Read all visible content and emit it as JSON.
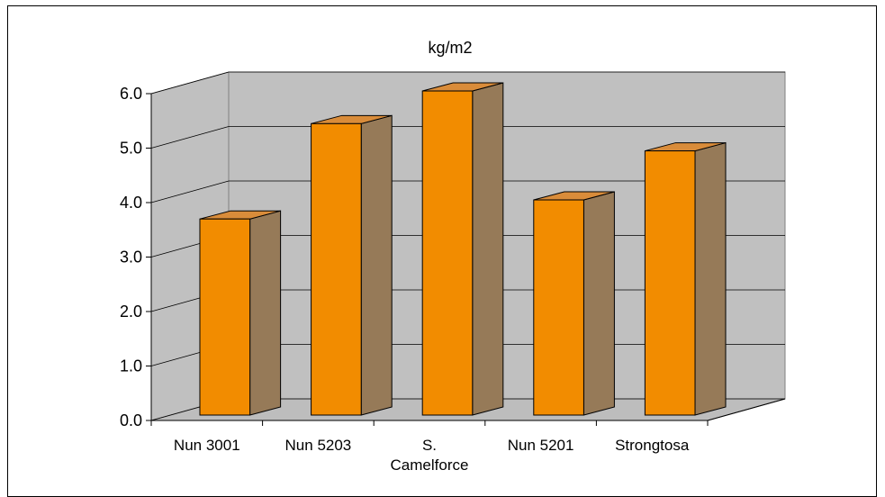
{
  "chart_data": {
    "type": "bar",
    "title": "kg/m2",
    "xlabel": "",
    "ylabel": "",
    "categories": [
      [
        "Nun 3001"
      ],
      [
        "Nun 5203"
      ],
      [
        "S.",
        "Camelforce"
      ],
      [
        "Nun 5201"
      ],
      [
        "Strongtosa"
      ]
    ],
    "values": [
      3.6,
      5.35,
      5.95,
      3.95,
      4.85
    ],
    "ylim": [
      0,
      6
    ],
    "yticks": [
      "0.0",
      "1.0",
      "2.0",
      "3.0",
      "4.0",
      "5.0",
      "6.0"
    ],
    "grid": true,
    "legend": "none",
    "style": "3d-column",
    "colors": {
      "bar_front": "#F28C00",
      "bar_side": "#967A58",
      "bar_top": "#D98C3A",
      "back_wall": "#C0C0C0",
      "side_wall": "#C0C0C0",
      "floor": "#BDBDBD",
      "grid": "#000000"
    }
  }
}
